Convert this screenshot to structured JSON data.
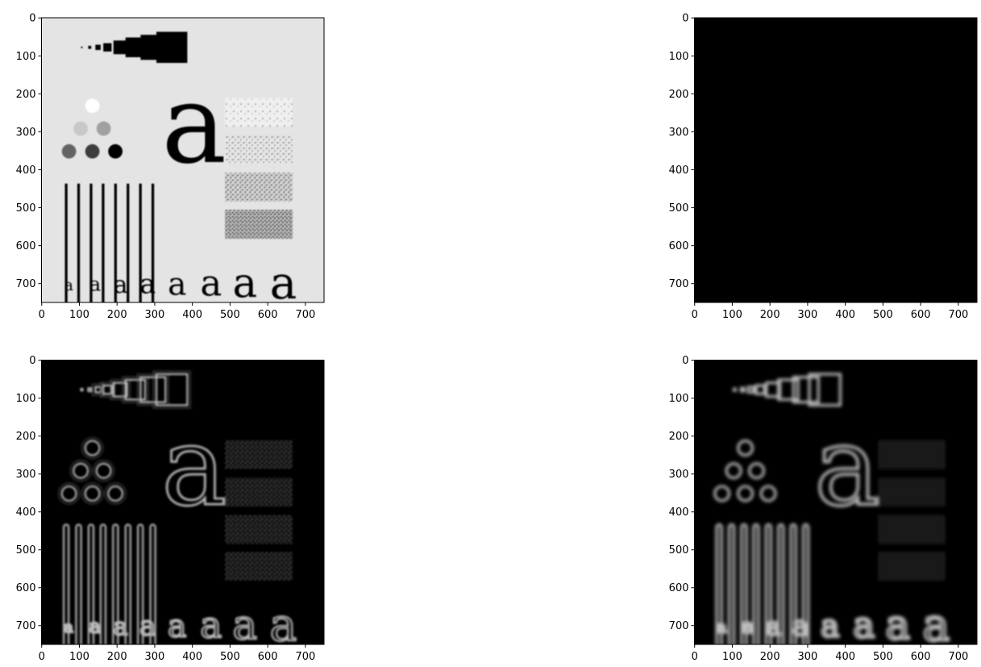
{
  "figure": {
    "panels": [
      {
        "id": "top-left",
        "content": "test-pattern",
        "xticks": [
          "0",
          "100",
          "200",
          "300",
          "400",
          "500",
          "600",
          "700"
        ],
        "yticks": [
          "0",
          "100",
          "200",
          "300",
          "400",
          "500",
          "600",
          "700"
        ]
      },
      {
        "id": "top-right",
        "content": "black",
        "xticks": [
          "0",
          "100",
          "200",
          "300",
          "400",
          "500",
          "600",
          "700"
        ],
        "yticks": [
          "0",
          "100",
          "200",
          "300",
          "400",
          "500",
          "600",
          "700"
        ]
      },
      {
        "id": "bottom-left",
        "content": "edge-ringing",
        "xticks": [
          "0",
          "100",
          "200",
          "300",
          "400",
          "500",
          "600",
          "700"
        ],
        "yticks": [
          "0",
          "100",
          "200",
          "300",
          "400",
          "500",
          "600",
          "700"
        ]
      },
      {
        "id": "bottom-right",
        "content": "edge-smooth",
        "xticks": [
          "0",
          "100",
          "200",
          "300",
          "400",
          "500",
          "600",
          "700"
        ],
        "yticks": [
          "0",
          "100",
          "200",
          "300",
          "400",
          "500",
          "600",
          "700"
        ]
      }
    ],
    "glyph": "a",
    "background_gray": "#e4e4e4",
    "ink_color": "#000000",
    "edge_color": "#bdbdbd"
  }
}
